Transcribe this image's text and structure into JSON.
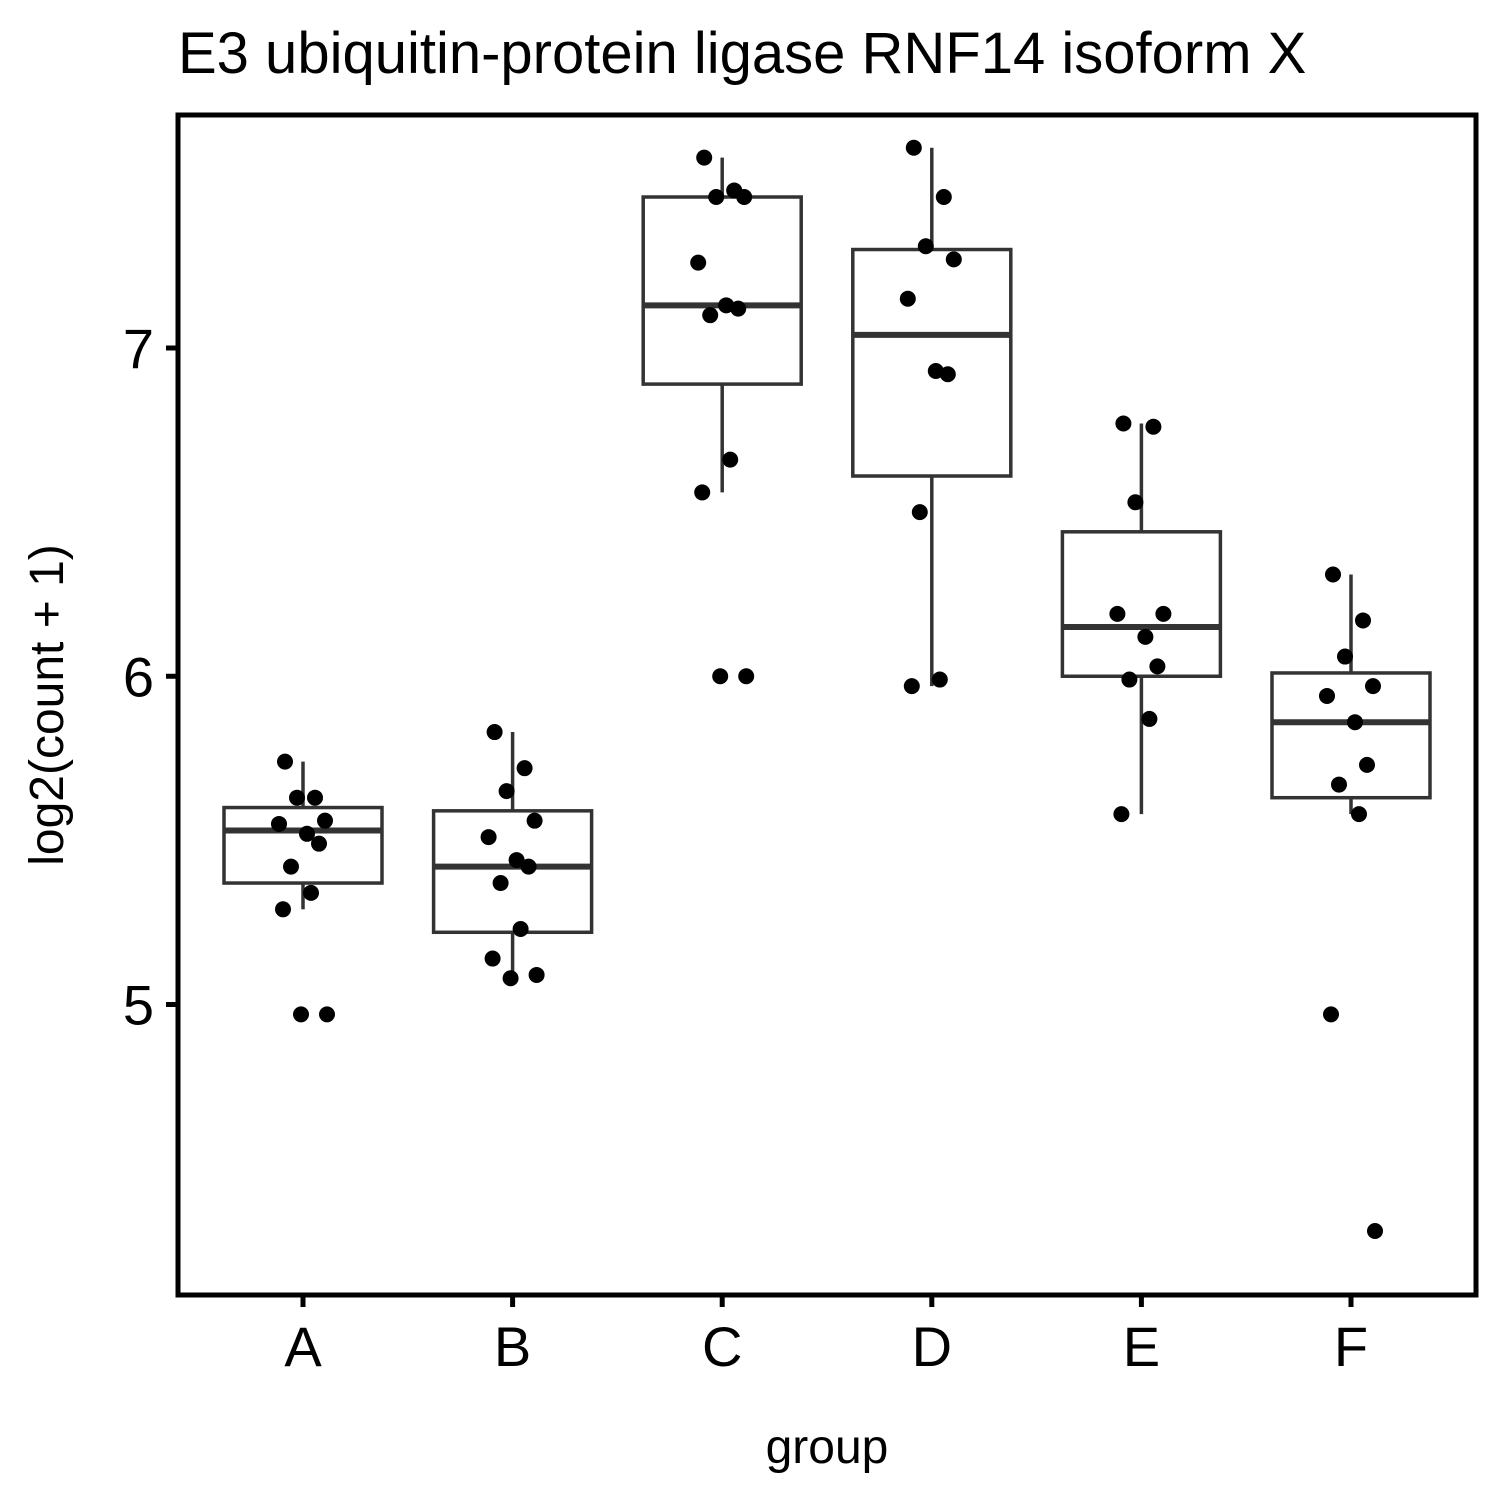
{
  "chart_data": {
    "type": "box",
    "title": "E3 ubiquitin-protein ligase RNF14 isoform X",
    "xlabel": "group",
    "ylabel": "log2(count + 1)",
    "ylim": [
      4.15,
      7.7
    ],
    "yticks": [
      5,
      6,
      7
    ],
    "categories": [
      "A",
      "B",
      "C",
      "D",
      "E",
      "F"
    ],
    "grid": false,
    "boxes": [
      {
        "group": "A",
        "lower_whisker": 5.29,
        "q1": 5.37,
        "median": 5.53,
        "q3": 5.6,
        "upper_whisker": 5.74
      },
      {
        "group": "B",
        "lower_whisker": 5.08,
        "q1": 5.22,
        "median": 5.42,
        "q3": 5.59,
        "upper_whisker": 5.83
      },
      {
        "group": "C",
        "lower_whisker": 6.56,
        "q1": 6.89,
        "median": 7.13,
        "q3": 7.46,
        "upper_whisker": 7.58
      },
      {
        "group": "D",
        "lower_whisker": 5.97,
        "q1": 6.61,
        "median": 7.04,
        "q3": 7.3,
        "upper_whisker": 7.61
      },
      {
        "group": "E",
        "lower_whisker": 5.58,
        "q1": 6.0,
        "median": 6.15,
        "q3": 6.44,
        "upper_whisker": 6.77
      },
      {
        "group": "F",
        "lower_whisker": 5.58,
        "q1": 5.63,
        "median": 5.86,
        "q3": 6.01,
        "upper_whisker": 6.31
      }
    ],
    "points": [
      {
        "group": "A",
        "values": [
          5.74,
          5.63,
          5.63,
          5.56,
          5.55,
          5.52,
          5.49,
          5.42,
          5.34,
          5.29,
          4.97,
          4.97
        ]
      },
      {
        "group": "B",
        "values": [
          5.83,
          5.72,
          5.65,
          5.56,
          5.51,
          5.44,
          5.42,
          5.37,
          5.23,
          5.14,
          5.09,
          5.08
        ]
      },
      {
        "group": "C",
        "values": [
          7.58,
          7.48,
          7.46,
          7.46,
          7.26,
          7.13,
          7.12,
          7.1,
          6.66,
          6.56,
          6.0,
          6.0
        ]
      },
      {
        "group": "D",
        "values": [
          7.61,
          7.46,
          7.31,
          7.27,
          7.15,
          6.93,
          6.92,
          6.5,
          5.99,
          5.97
        ]
      },
      {
        "group": "E",
        "values": [
          6.77,
          6.76,
          6.53,
          6.19,
          6.19,
          6.12,
          6.03,
          5.99,
          5.87,
          5.58
        ]
      },
      {
        "group": "F",
        "values": [
          6.31,
          6.17,
          6.06,
          5.97,
          5.94,
          5.86,
          5.73,
          5.67,
          5.58,
          4.97,
          4.31
        ]
      }
    ]
  }
}
